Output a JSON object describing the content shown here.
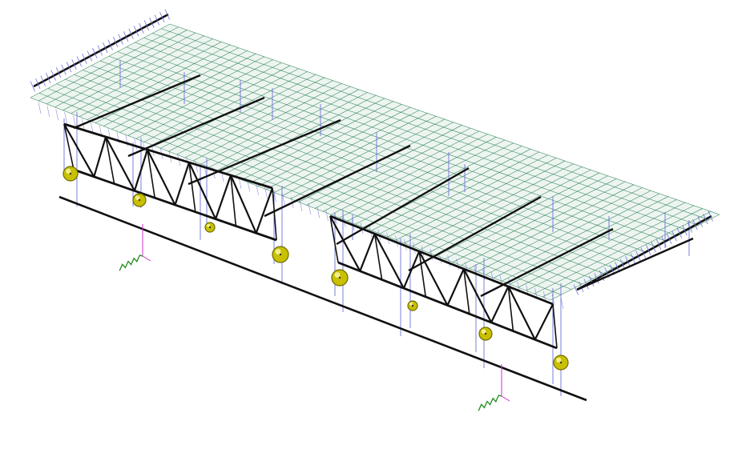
{
  "model": {
    "deck": {
      "mesh_color": "#1f7a4a",
      "mesh_fill": "#cfe3d6"
    },
    "colors": {
      "member": "#111111",
      "guide": "#6b72d8",
      "support_node": "#c8c000",
      "support_node_stroke": "#6f6a00",
      "spring": "#1e8a1e",
      "axis_magenta": "#cc33cc"
    },
    "truss_frames": 2,
    "support_nodes": 8,
    "transverse_beams": 8,
    "coordinate_markers": 2
  }
}
